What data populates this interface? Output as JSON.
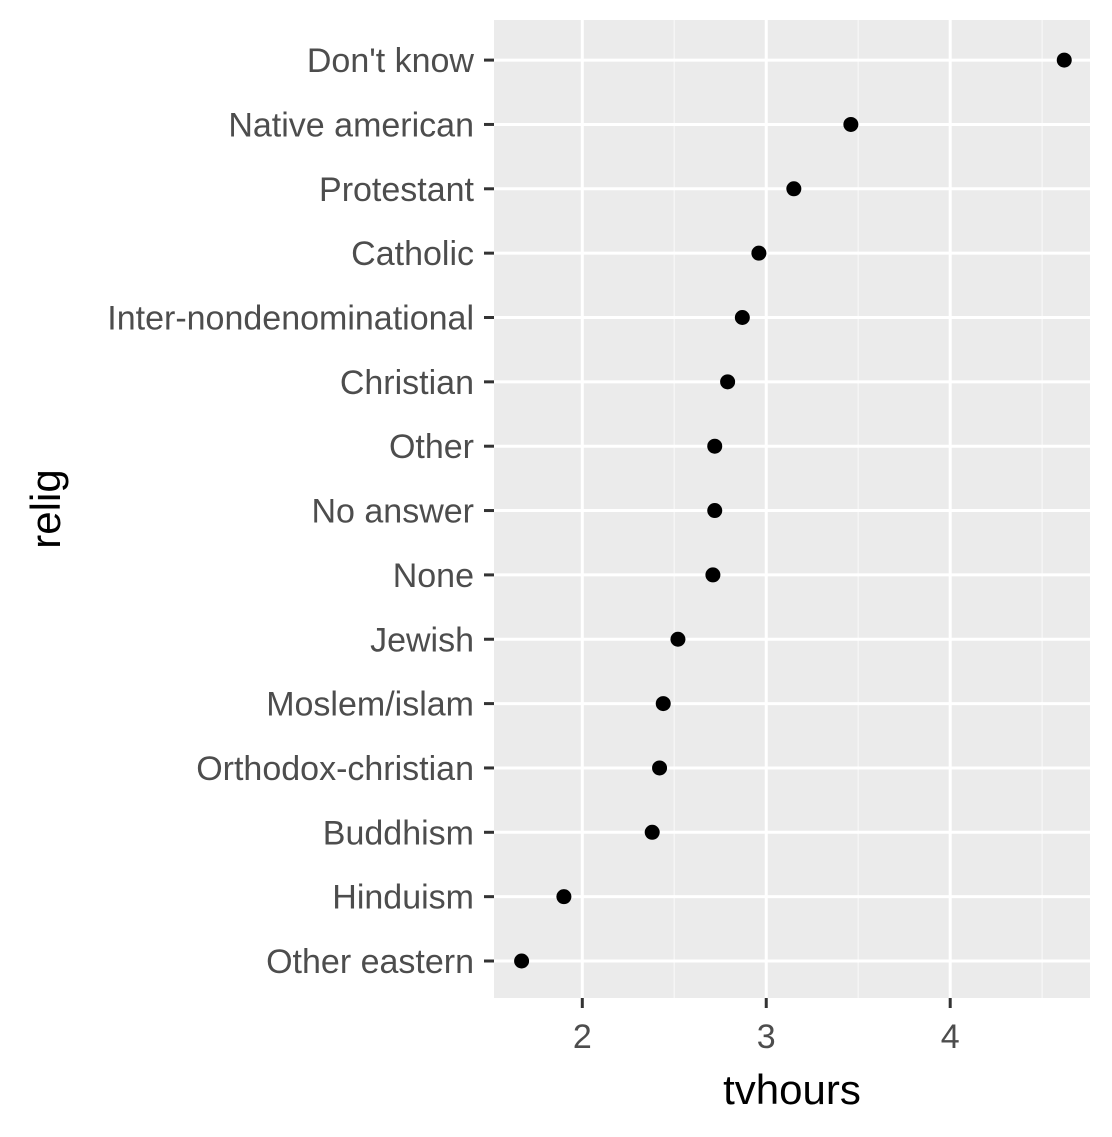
{
  "chart_data": {
    "type": "scatter",
    "xlabel": "tvhours",
    "ylabel": "relig",
    "xlim": [
      1.52,
      4.76
    ],
    "x_ticks": [
      2,
      3,
      4
    ],
    "x_tick_labels": [
      "2",
      "3",
      "4"
    ],
    "grid": true,
    "legend": "none",
    "categories": [
      "Other eastern",
      "Hinduism",
      "Buddhism",
      "Orthodox-christian",
      "Moslem/islam",
      "Jewish",
      "None",
      "No answer",
      "Other",
      "Christian",
      "Inter-nondenominational",
      "Catholic",
      "Protestant",
      "Native american",
      "Don't know"
    ],
    "series": [
      {
        "values": [
          1.67,
          1.9,
          2.38,
          2.42,
          2.44,
          2.52,
          2.71,
          2.72,
          2.72,
          2.79,
          2.87,
          2.96,
          3.15,
          3.46,
          4.62
        ]
      }
    ]
  },
  "colors": {
    "panel_background": "#ebebeb",
    "grid_major": "#ffffff",
    "grid_minor": "#f5f5f5",
    "point": "#000000",
    "tick_text": "#4d4d4d",
    "tick_mark": "#333333",
    "axis_title": "#000000"
  }
}
